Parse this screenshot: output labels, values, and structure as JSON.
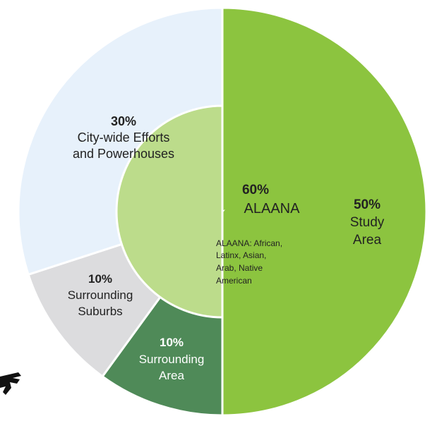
{
  "chart_data": {
    "type": "pie",
    "slices": [
      {
        "name": "Study Area",
        "value": 50,
        "pct_label": "50%",
        "label_lines": [
          "Study",
          "Area"
        ],
        "color": "#8cc43f",
        "text_color": "#222222"
      },
      {
        "name": "Surrounding Area",
        "value": 10,
        "pct_label": "10%",
        "label_lines": [
          "Surrounding",
          "Area"
        ],
        "color": "#4f8a58",
        "text_color": "#ffffff"
      },
      {
        "name": "Surrounding Suburbs",
        "value": 10,
        "pct_label": "10%",
        "label_lines": [
          "Surrounding",
          "Suburbs"
        ],
        "color": "#dcdcde",
        "text_color": "#222222"
      },
      {
        "name": "City-wide Efforts and Powerhouses",
        "value": 30,
        "pct_label": "30%",
        "label_lines": [
          "City-wide Efforts",
          "and Powerhouses"
        ],
        "color": "#e7f1fb",
        "text_color": "#222222"
      }
    ],
    "inner": {
      "name": "ALAANA",
      "value": 60,
      "pct_label": "60%",
      "label": "ALAANA",
      "color": "#bcdc8b",
      "note_lines": [
        "ALAANA: African,",
        "Latinx, Asian,",
        "Arab, Native",
        "American"
      ]
    }
  }
}
